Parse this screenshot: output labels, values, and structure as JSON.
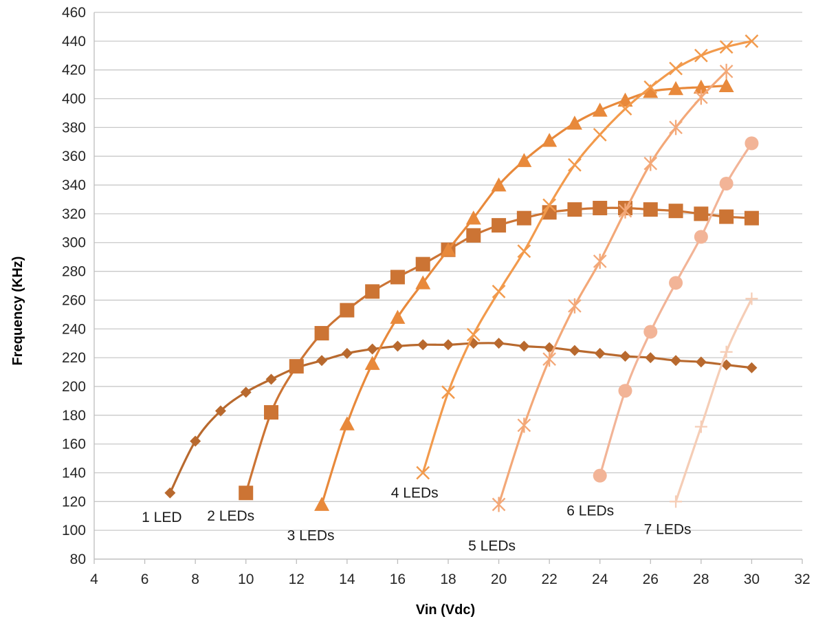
{
  "chart_data": {
    "type": "line",
    "title": "",
    "xlabel": "Vin (Vdc)",
    "ylabel": "Frequency (KHz)",
    "xlim": [
      4,
      32
    ],
    "ylim": [
      80,
      460
    ],
    "x_ticks": [
      4,
      6,
      8,
      10,
      12,
      14,
      16,
      18,
      20,
      22,
      24,
      26,
      28,
      30,
      32
    ],
    "y_ticks": [
      80,
      100,
      120,
      140,
      160,
      180,
      200,
      220,
      240,
      260,
      280,
      300,
      320,
      340,
      360,
      380,
      400,
      420,
      440,
      460
    ],
    "grid": "horizontal",
    "legend": "none (series labeled inline)",
    "series": [
      {
        "name": "1 LED",
        "color": "#B8692E",
        "marker": "diamond",
        "x": [
          7,
          8,
          9,
          10,
          11,
          12,
          13,
          14,
          15,
          16,
          17,
          18,
          19,
          20,
          21,
          22,
          23,
          24,
          25,
          26,
          27,
          28,
          29,
          30
        ],
        "y": [
          126,
          162,
          183,
          196,
          205,
          213,
          218,
          223,
          226,
          228,
          229,
          229,
          230,
          230,
          228,
          227,
          225,
          223,
          221,
          220,
          218,
          217,
          215,
          213
        ]
      },
      {
        "name": "2 LEDs",
        "color": "#CC7434",
        "marker": "square",
        "x": [
          10,
          11,
          12,
          13,
          14,
          15,
          16,
          17,
          18,
          19,
          20,
          21,
          22,
          23,
          24,
          25,
          26,
          27,
          28,
          29,
          30
        ],
        "y": [
          126,
          182,
          214,
          237,
          253,
          266,
          276,
          285,
          295,
          305,
          312,
          317,
          321,
          323,
          324,
          324,
          323,
          322,
          320,
          318,
          317
        ]
      },
      {
        "name": "3 LEDs",
        "color": "#E8893B",
        "marker": "triangle",
        "x": [
          13,
          14,
          15,
          16,
          17,
          18,
          19,
          20,
          21,
          22,
          23,
          24,
          25,
          26,
          27,
          28,
          29
        ],
        "y": [
          118,
          174,
          216,
          248,
          272,
          295,
          317,
          340,
          357,
          371,
          383,
          392,
          399,
          405,
          407,
          408,
          409
        ]
      },
      {
        "name": "4 LEDs",
        "color": "#F29A4C",
        "marker": "x",
        "x": [
          17,
          18,
          19,
          20,
          21,
          22,
          23,
          24,
          25,
          26,
          27,
          28,
          29,
          30
        ],
        "y": [
          140,
          196,
          236,
          266,
          294,
          326,
          354,
          375,
          393,
          408,
          421,
          430,
          436,
          440
        ]
      },
      {
        "name": "5 LEDs",
        "color": "#F3A878",
        "marker": "asterisk",
        "x": [
          20,
          21,
          22,
          23,
          24,
          25,
          26,
          27,
          28,
          29
        ],
        "y": [
          118,
          173,
          219,
          256,
          287,
          322,
          355,
          380,
          401,
          419
        ]
      },
      {
        "name": "6 LEDs",
        "color": "#F2B497",
        "marker": "circle",
        "x": [
          24,
          25,
          26,
          27,
          28,
          29,
          30
        ],
        "y": [
          138,
          197,
          238,
          272,
          304,
          341,
          369
        ]
      },
      {
        "name": "7 LEDs",
        "color": "#F5CDB6",
        "marker": "plus",
        "x": [
          27,
          28,
          29,
          30
        ],
        "y": [
          120,
          172,
          224,
          261
        ]
      }
    ],
    "annotations": [
      {
        "text": "1 LED",
        "series": "1 LED"
      },
      {
        "text": "2 LEDs",
        "series": "2 LEDs"
      },
      {
        "text": "3 LEDs",
        "series": "3 LEDs"
      },
      {
        "text": "4 LEDs",
        "series": "4 LEDs"
      },
      {
        "text": "5 LEDs",
        "series": "5 LEDs"
      },
      {
        "text": "6 LEDs",
        "series": "6 LEDs"
      },
      {
        "text": "7 LEDs",
        "series": "7 LEDs"
      }
    ]
  }
}
